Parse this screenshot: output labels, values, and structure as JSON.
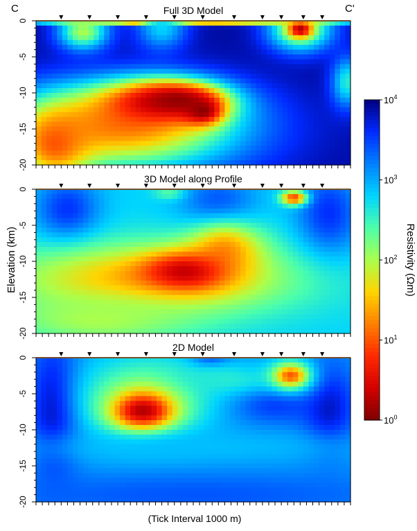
{
  "chart_data": {
    "type": "heatmap",
    "profile": {
      "start_label": "C",
      "end_label": "C'"
    },
    "ylabel": "Elevation (km)",
    "xlabel": "(Tick Interval 1000 m)",
    "ylim": [
      -20,
      0
    ],
    "yticks": [
      0,
      -5,
      -10,
      -15,
      -20
    ],
    "colorbar": {
      "label": "Resistivity (Ωm)",
      "scale": "log",
      "range": [
        1,
        10000
      ],
      "ticks": [
        {
          "value": 1,
          "base": "10",
          "exp": "0"
        },
        {
          "value": 10,
          "base": "10",
          "exp": "1"
        },
        {
          "value": 100,
          "base": "10",
          "exp": "2"
        },
        {
          "value": 1000,
          "base": "10",
          "exp": "3"
        },
        {
          "value": 10000,
          "base": "10",
          "exp": "4"
        }
      ],
      "colormap": [
        "#7f0000",
        "#d40000",
        "#ff2a00",
        "#ff8000",
        "#ffd400",
        "#aaff4d",
        "#4dffaa",
        "#00d4ff",
        "#0080ff",
        "#002aff",
        "#00007f"
      ]
    },
    "stations_x": [
      0.08,
      0.17,
      0.26,
      0.35,
      0.44,
      0.53,
      0.63,
      0.72,
      0.78,
      0.85,
      0.91
    ],
    "panels": [
      {
        "title": "Full 3D Model",
        "background_log10": 3.9,
        "features": [
          {
            "x": 0.5,
            "depth_km": 0.3,
            "rx": 0.5,
            "ry_km": 0.35,
            "log10": 1.5
          },
          {
            "x": 0.33,
            "depth_km": 0.2,
            "rx": 0.04,
            "ry_km": 0.4,
            "log10": 0.9
          },
          {
            "x": 0.15,
            "depth_km": 1.5,
            "rx": 0.08,
            "ry_km": 2.5,
            "log10": 2.0
          },
          {
            "x": 0.4,
            "depth_km": 1.0,
            "rx": 0.08,
            "ry_km": 3.0,
            "log10": 2.8
          },
          {
            "x": 0.84,
            "depth_km": 1.2,
            "rx": 0.1,
            "ry_km": 3.0,
            "log10": 1.8
          },
          {
            "x": 0.84,
            "depth_km": 1.2,
            "rx": 0.035,
            "ry_km": 1.0,
            "log10": 0.2
          },
          {
            "x": 0.99,
            "depth_km": 8.5,
            "rx": 0.05,
            "ry_km": 3.5,
            "log10": 2.6
          },
          {
            "x": 0.27,
            "depth_km": 15.0,
            "rx": 0.38,
            "ry_km": 6.0,
            "log10": 1.3
          },
          {
            "x": 0.06,
            "depth_km": 17.0,
            "rx": 0.12,
            "ry_km": 5.0,
            "log10": 1.0
          },
          {
            "x": 0.38,
            "depth_km": 11.5,
            "rx": 0.2,
            "ry_km": 3.2,
            "log10": 0.6
          },
          {
            "x": 0.45,
            "depth_km": 11.0,
            "rx": 0.13,
            "ry_km": 2.2,
            "log10": 0.1
          },
          {
            "x": 0.53,
            "depth_km": 12.5,
            "rx": 0.06,
            "ry_km": 1.8,
            "log10": 0.05
          }
        ]
      },
      {
        "title": "3D Model along Profile",
        "background_log10": 2.8,
        "features": [
          {
            "x": 0.1,
            "depth_km": 3.0,
            "rx": 0.1,
            "ry_km": 4.5,
            "log10": 3.6
          },
          {
            "x": 0.58,
            "depth_km": 2.5,
            "rx": 0.12,
            "ry_km": 4.5,
            "log10": 3.5
          },
          {
            "x": 0.93,
            "depth_km": 3.5,
            "rx": 0.1,
            "ry_km": 6.0,
            "log10": 3.6
          },
          {
            "x": 0.42,
            "depth_km": 0.5,
            "rx": 0.05,
            "ry_km": 1.0,
            "log10": 2.4
          },
          {
            "x": 0.82,
            "depth_km": 1.2,
            "rx": 0.04,
            "ry_km": 1.0,
            "log10": 0.9
          },
          {
            "x": 0.36,
            "depth_km": 12.5,
            "rx": 0.45,
            "ry_km": 5.0,
            "log10": 1.4
          },
          {
            "x": 0.6,
            "depth_km": 8.5,
            "rx": 0.12,
            "ry_km": 4.0,
            "log10": 1.3
          },
          {
            "x": 0.47,
            "depth_km": 11.5,
            "rx": 0.13,
            "ry_km": 2.6,
            "log10": 0.3
          },
          {
            "x": 0.2,
            "depth_km": 18.0,
            "rx": 0.3,
            "ry_km": 3.5,
            "log10": 2.0
          }
        ]
      },
      {
        "title": "2D Model",
        "background_log10": 3.1,
        "features": [
          {
            "x": 0.06,
            "depth_km": 7.0,
            "rx": 0.08,
            "ry_km": 9.0,
            "log10": 4.0
          },
          {
            "x": 0.93,
            "depth_km": 7.0,
            "rx": 0.08,
            "ry_km": 6.0,
            "log10": 3.8
          },
          {
            "x": 0.55,
            "depth_km": 0.4,
            "rx": 0.06,
            "ry_km": 1.2,
            "log10": 3.9
          },
          {
            "x": 0.75,
            "depth_km": 5.5,
            "rx": 0.15,
            "ry_km": 3.5,
            "log10": 3.7
          },
          {
            "x": 0.35,
            "depth_km": 5.5,
            "rx": 0.22,
            "ry_km": 6.0,
            "log10": 2.2
          },
          {
            "x": 0.6,
            "depth_km": 3.0,
            "rx": 0.2,
            "ry_km": 2.5,
            "log10": 2.6
          },
          {
            "x": 0.81,
            "depth_km": 2.5,
            "rx": 0.07,
            "ry_km": 2.2,
            "log10": 1.7
          },
          {
            "x": 0.81,
            "depth_km": 2.5,
            "rx": 0.035,
            "ry_km": 1.0,
            "log10": 1.0
          },
          {
            "x": 0.34,
            "depth_km": 7.5,
            "rx": 0.11,
            "ry_km": 3.2,
            "log10": 1.2
          },
          {
            "x": 0.34,
            "depth_km": 7.5,
            "rx": 0.07,
            "ry_km": 2.0,
            "log10": 0.2
          },
          {
            "x": 0.5,
            "depth_km": 12.5,
            "rx": 0.55,
            "ry_km": 2.5,
            "log10": 2.9
          },
          {
            "x": 0.5,
            "depth_km": 19.0,
            "rx": 0.7,
            "ry_km": 3.0,
            "log10": 3.4
          }
        ]
      }
    ]
  }
}
